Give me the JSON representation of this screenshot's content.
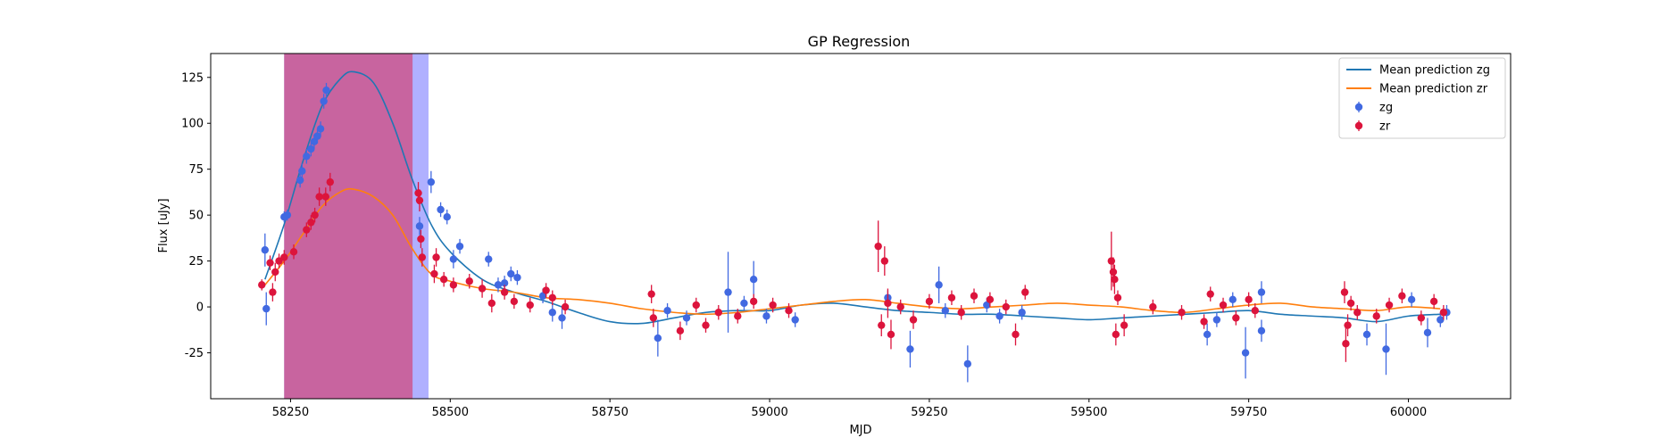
{
  "chart_data": {
    "type": "scatter",
    "title": "GP Regression",
    "xlabel": "MJD",
    "ylabel": "Flux [uJy]",
    "xlim": [
      58125,
      60160
    ],
    "ylim": [
      -50,
      138
    ],
    "xticks": [
      58250,
      58500,
      58750,
      59000,
      59250,
      59500,
      59750,
      60000
    ],
    "yticks": [
      -25,
      0,
      25,
      50,
      75,
      100,
      125
    ],
    "grid": false,
    "legend_position": "top-right",
    "colors": {
      "zg_line": "#1f77b4",
      "zr_line": "#ff7f0e",
      "zg_points": "#4169e1",
      "zr_points": "#dc143c",
      "span_outer": "#6f6fff",
      "span_inner": "#d26fa8"
    },
    "shaded_spans": [
      {
        "x0": 58240,
        "x1": 58466,
        "color": "#7b7bff",
        "opacity": 0.6
      },
      {
        "x0": 58240,
        "x1": 58441,
        "color": "#c9609a",
        "opacity": 0.95
      }
    ],
    "series": [
      {
        "name": "Mean prediction zg",
        "kind": "line",
        "color": "#1f77b4",
        "x": [
          58210,
          58240,
          58270,
          58300,
          58330,
          58350,
          58380,
          58410,
          58440,
          58470,
          58500,
          58550,
          58600,
          58650,
          58700,
          58750,
          58800,
          58850,
          58900,
          58950,
          59000,
          59050,
          59100,
          59150,
          59200,
          59250,
          59300,
          59350,
          59400,
          59450,
          59500,
          59550,
          59600,
          59650,
          59700,
          59750,
          59800,
          59850,
          59900,
          59950,
          60000,
          60050
        ],
        "y": [
          15,
          45,
          80,
          110,
          125,
          128,
          122,
          100,
          70,
          45,
          30,
          15,
          8,
          3,
          -3,
          -8,
          -9,
          -6,
          -3,
          -2,
          -2,
          1,
          2,
          0,
          -2,
          -3,
          -4,
          -4,
          -5,
          -6,
          -7,
          -6,
          -5,
          -4,
          -3,
          -2,
          -4,
          -5,
          -6,
          -8,
          -5,
          -4
        ]
      },
      {
        "name": "Mean prediction zr",
        "kind": "line",
        "color": "#ff7f0e",
        "x": [
          58210,
          58240,
          58270,
          58300,
          58330,
          58350,
          58380,
          58410,
          58440,
          58470,
          58500,
          58550,
          58600,
          58650,
          58700,
          58750,
          58800,
          58850,
          58900,
          58950,
          59000,
          59050,
          59100,
          59150,
          59200,
          59250,
          59300,
          59350,
          59400,
          59450,
          59500,
          59550,
          59600,
          59650,
          59700,
          59750,
          59800,
          59850,
          59900,
          59950,
          60000,
          60050
        ],
        "y": [
          12,
          25,
          40,
          55,
          63,
          64,
          60,
          50,
          32,
          18,
          14,
          10,
          8,
          5,
          4,
          2,
          -1,
          -3,
          -4,
          -3,
          -1,
          1,
          3,
          4,
          2,
          0,
          -1,
          0,
          1,
          2,
          1,
          0,
          -2,
          -3,
          -1,
          1,
          2,
          0,
          -1,
          -2,
          0,
          -1
        ]
      },
      {
        "name": "zg",
        "kind": "errorbar",
        "color": "#4169e1",
        "points": [
          {
            "x": 58210,
            "y": 31,
            "err": 9
          },
          {
            "x": 58212,
            "y": -1,
            "err": 9
          },
          {
            "x": 58240,
            "y": 49,
            "err": 3
          },
          {
            "x": 58245,
            "y": 50,
            "err": 3
          },
          {
            "x": 58265,
            "y": 69,
            "err": 4
          },
          {
            "x": 58268,
            "y": 74,
            "err": 4
          },
          {
            "x": 58275,
            "y": 82,
            "err": 4
          },
          {
            "x": 58282,
            "y": 86,
            "err": 4
          },
          {
            "x": 58287,
            "y": 90,
            "err": 4
          },
          {
            "x": 58292,
            "y": 93,
            "err": 4
          },
          {
            "x": 58297,
            "y": 97,
            "err": 4
          },
          {
            "x": 58302,
            "y": 112,
            "err": 4
          },
          {
            "x": 58306,
            "y": 118,
            "err": 4
          },
          {
            "x": 58452,
            "y": 44,
            "err": 5
          },
          {
            "x": 58470,
            "y": 68,
            "err": 6
          },
          {
            "x": 58485,
            "y": 53,
            "err": 4
          },
          {
            "x": 58495,
            "y": 49,
            "err": 4
          },
          {
            "x": 58505,
            "y": 26,
            "err": 5
          },
          {
            "x": 58515,
            "y": 33,
            "err": 4
          },
          {
            "x": 58560,
            "y": 26,
            "err": 4
          },
          {
            "x": 58575,
            "y": 12,
            "err": 4
          },
          {
            "x": 58585,
            "y": 13,
            "err": 4
          },
          {
            "x": 58595,
            "y": 18,
            "err": 4
          },
          {
            "x": 58605,
            "y": 16,
            "err": 4
          },
          {
            "x": 58645,
            "y": 6,
            "err": 4
          },
          {
            "x": 58660,
            "y": -3,
            "err": 5
          },
          {
            "x": 58675,
            "y": -6,
            "err": 6
          },
          {
            "x": 58825,
            "y": -17,
            "err": 10
          },
          {
            "x": 58840,
            "y": -2,
            "err": 4
          },
          {
            "x": 58870,
            "y": -6,
            "err": 4
          },
          {
            "x": 58935,
            "y": 8,
            "err": 22
          },
          {
            "x": 58960,
            "y": 2,
            "err": 4
          },
          {
            "x": 58975,
            "y": 15,
            "err": 10
          },
          {
            "x": 58995,
            "y": -5,
            "err": 4
          },
          {
            "x": 59040,
            "y": -7,
            "err": 4
          },
          {
            "x": 59185,
            "y": 5,
            "err": 4
          },
          {
            "x": 59220,
            "y": -23,
            "err": 10
          },
          {
            "x": 59265,
            "y": 12,
            "err": 10
          },
          {
            "x": 59275,
            "y": -2,
            "err": 4
          },
          {
            "x": 59310,
            "y": -31,
            "err": 10
          },
          {
            "x": 59340,
            "y": 1,
            "err": 4
          },
          {
            "x": 59360,
            "y": -5,
            "err": 4
          },
          {
            "x": 59395,
            "y": -3,
            "err": 4
          },
          {
            "x": 59685,
            "y": -15,
            "err": 6
          },
          {
            "x": 59700,
            "y": -7,
            "err": 4
          },
          {
            "x": 59725,
            "y": 4,
            "err": 4
          },
          {
            "x": 59745,
            "y": -25,
            "err": 14
          },
          {
            "x": 59770,
            "y": 8,
            "err": 6
          },
          {
            "x": 59770,
            "y": -13,
            "err": 6
          },
          {
            "x": 59935,
            "y": -15,
            "err": 6
          },
          {
            "x": 59965,
            "y": -23,
            "err": 14
          },
          {
            "x": 60005,
            "y": 4,
            "err": 4
          },
          {
            "x": 60030,
            "y": -14,
            "err": 8
          },
          {
            "x": 60050,
            "y": -7,
            "err": 4
          },
          {
            "x": 60060,
            "y": -3,
            "err": 4
          }
        ]
      },
      {
        "name": "zr",
        "kind": "errorbar",
        "color": "#dc143c",
        "points": [
          {
            "x": 58205,
            "y": 12,
            "err": 3
          },
          {
            "x": 58218,
            "y": 24,
            "err": 4
          },
          {
            "x": 58222,
            "y": 8,
            "err": 5
          },
          {
            "x": 58226,
            "y": 19,
            "err": 5
          },
          {
            "x": 58232,
            "y": 25,
            "err": 4
          },
          {
            "x": 58240,
            "y": 27,
            "err": 4
          },
          {
            "x": 58255,
            "y": 30,
            "err": 4
          },
          {
            "x": 58275,
            "y": 42,
            "err": 4
          },
          {
            "x": 58282,
            "y": 46,
            "err": 4
          },
          {
            "x": 58288,
            "y": 50,
            "err": 4
          },
          {
            "x": 58295,
            "y": 60,
            "err": 5
          },
          {
            "x": 58305,
            "y": 60,
            "err": 5
          },
          {
            "x": 58312,
            "y": 68,
            "err": 5
          },
          {
            "x": 58450,
            "y": 62,
            "err": 6
          },
          {
            "x": 58452,
            "y": 58,
            "err": 6
          },
          {
            "x": 58454,
            "y": 37,
            "err": 5
          },
          {
            "x": 58456,
            "y": 27,
            "err": 5
          },
          {
            "x": 58475,
            "y": 18,
            "err": 5
          },
          {
            "x": 58478,
            "y": 27,
            "err": 5
          },
          {
            "x": 58490,
            "y": 15,
            "err": 4
          },
          {
            "x": 58505,
            "y": 12,
            "err": 4
          },
          {
            "x": 58530,
            "y": 14,
            "err": 4
          },
          {
            "x": 58550,
            "y": 10,
            "err": 5
          },
          {
            "x": 58565,
            "y": 2,
            "err": 5
          },
          {
            "x": 58585,
            "y": 8,
            "err": 4
          },
          {
            "x": 58600,
            "y": 3,
            "err": 4
          },
          {
            "x": 58625,
            "y": 1,
            "err": 4
          },
          {
            "x": 58650,
            "y": 9,
            "err": 4
          },
          {
            "x": 58660,
            "y": 5,
            "err": 4
          },
          {
            "x": 58680,
            "y": 0,
            "err": 4
          },
          {
            "x": 58815,
            "y": 7,
            "err": 5
          },
          {
            "x": 58818,
            "y": -6,
            "err": 5
          },
          {
            "x": 58860,
            "y": -13,
            "err": 5
          },
          {
            "x": 58885,
            "y": 1,
            "err": 4
          },
          {
            "x": 58900,
            "y": -10,
            "err": 4
          },
          {
            "x": 58920,
            "y": -3,
            "err": 4
          },
          {
            "x": 58950,
            "y": -5,
            "err": 4
          },
          {
            "x": 58975,
            "y": 3,
            "err": 4
          },
          {
            "x": 59005,
            "y": 1,
            "err": 4
          },
          {
            "x": 59030,
            "y": -2,
            "err": 4
          },
          {
            "x": 59170,
            "y": 33,
            "err": 14
          },
          {
            "x": 59175,
            "y": -10,
            "err": 6
          },
          {
            "x": 59180,
            "y": 25,
            "err": 8
          },
          {
            "x": 59185,
            "y": 2,
            "err": 8
          },
          {
            "x": 59190,
            "y": -15,
            "err": 8
          },
          {
            "x": 59205,
            "y": 0,
            "err": 4
          },
          {
            "x": 59225,
            "y": -7,
            "err": 5
          },
          {
            "x": 59250,
            "y": 3,
            "err": 4
          },
          {
            "x": 59285,
            "y": 5,
            "err": 4
          },
          {
            "x": 59300,
            "y": -3,
            "err": 4
          },
          {
            "x": 59320,
            "y": 6,
            "err": 4
          },
          {
            "x": 59345,
            "y": 4,
            "err": 4
          },
          {
            "x": 59370,
            "y": 0,
            "err": 4
          },
          {
            "x": 59385,
            "y": -15,
            "err": 6
          },
          {
            "x": 59400,
            "y": 8,
            "err": 4
          },
          {
            "x": 59535,
            "y": 25,
            "err": 16
          },
          {
            "x": 59538,
            "y": 19,
            "err": 8
          },
          {
            "x": 59540,
            "y": 15,
            "err": 8
          },
          {
            "x": 59542,
            "y": -15,
            "err": 6
          },
          {
            "x": 59545,
            "y": 5,
            "err": 4
          },
          {
            "x": 59555,
            "y": -10,
            "err": 6
          },
          {
            "x": 59600,
            "y": 0,
            "err": 4
          },
          {
            "x": 59645,
            "y": -3,
            "err": 4
          },
          {
            "x": 59680,
            "y": -8,
            "err": 4
          },
          {
            "x": 59690,
            "y": 7,
            "err": 4
          },
          {
            "x": 59710,
            "y": 1,
            "err": 4
          },
          {
            "x": 59730,
            "y": -6,
            "err": 4
          },
          {
            "x": 59750,
            "y": 4,
            "err": 4
          },
          {
            "x": 59760,
            "y": -2,
            "err": 4
          },
          {
            "x": 59900,
            "y": 8,
            "err": 6
          },
          {
            "x": 59902,
            "y": -20,
            "err": 10
          },
          {
            "x": 59905,
            "y": -10,
            "err": 6
          },
          {
            "x": 59910,
            "y": 2,
            "err": 4
          },
          {
            "x": 59920,
            "y": -3,
            "err": 4
          },
          {
            "x": 59950,
            "y": -5,
            "err": 4
          },
          {
            "x": 59970,
            "y": 1,
            "err": 4
          },
          {
            "x": 59990,
            "y": 6,
            "err": 4
          },
          {
            "x": 60020,
            "y": -6,
            "err": 4
          },
          {
            "x": 60040,
            "y": 3,
            "err": 4
          },
          {
            "x": 60055,
            "y": -3,
            "err": 4
          }
        ]
      }
    ],
    "legend": [
      {
        "label": "Mean prediction zg",
        "kind": "line",
        "color": "#1f77b4"
      },
      {
        "label": "Mean prediction zr",
        "kind": "line",
        "color": "#ff7f0e"
      },
      {
        "label": "zg",
        "kind": "errorbar",
        "color": "#4169e1"
      },
      {
        "label": "zr",
        "kind": "errorbar",
        "color": "#dc143c"
      }
    ]
  }
}
